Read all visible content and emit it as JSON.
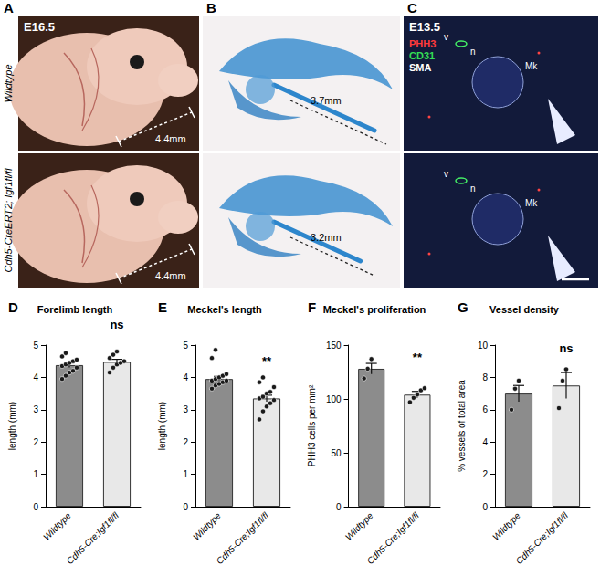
{
  "figure": {
    "A": {
      "label": "A",
      "stage": "E16.5",
      "rows": [
        {
          "genotype": "Wildtype",
          "measurement": "4.4mm"
        },
        {
          "genotype": "Cdh5-CreERT2; Igf1fl/fl",
          "measurement": "4.4mm"
        }
      ]
    },
    "B": {
      "label": "B",
      "rows": [
        {
          "measurement": "3.7mm"
        },
        {
          "measurement": "3.2mm"
        }
      ]
    },
    "C": {
      "label": "C",
      "stage": "E13.5",
      "channels": [
        "PHH3",
        "CD31",
        "SMA"
      ],
      "structures": [
        "v",
        "n",
        "Mk"
      ]
    }
  },
  "chart_data": [
    {
      "panel": "D",
      "type": "bar",
      "title": "Forelimb length",
      "y_label": "length (mm)",
      "categories": [
        "Wildtype",
        "Cdh5-Cre;Igf1fl/fl"
      ],
      "values": [
        4.38,
        4.48
      ],
      "errors": [
        0.07,
        0.08
      ],
      "points": [
        [
          3.95,
          4.05,
          4.15,
          4.2,
          4.3,
          4.35,
          4.4,
          4.45,
          4.5,
          4.55,
          4.65,
          4.75
        ],
        [
          4.15,
          4.3,
          4.4,
          4.45,
          4.5,
          4.6,
          4.7,
          4.8
        ]
      ],
      "colors": [
        "#8c8c8c",
        "#e8e8e8"
      ],
      "annotation": "ns",
      "ylim": [
        0,
        5
      ],
      "yticks": [
        0,
        1,
        2,
        3,
        4,
        5
      ]
    },
    {
      "panel": "E",
      "type": "bar",
      "title": "Meckel's length",
      "y_label": "length (mm)",
      "categories": [
        "Wildtype",
        "Cdh5-Cre;Igf1fl/fl"
      ],
      "values": [
        3.95,
        3.35
      ],
      "errors": [
        0.08,
        0.1
      ],
      "points": [
        [
          3.65,
          3.75,
          3.8,
          3.85,
          3.9,
          3.9,
          3.95,
          4.0,
          4.05,
          4.1,
          4.6,
          4.85
        ],
        [
          2.7,
          2.95,
          3.1,
          3.2,
          3.3,
          3.35,
          3.4,
          3.5,
          3.55,
          3.7,
          3.85,
          4.0
        ]
      ],
      "colors": [
        "#8c8c8c",
        "#e8e8e8"
      ],
      "annotation": "**",
      "ylim": [
        0,
        5
      ],
      "yticks": [
        0,
        1,
        2,
        3,
        4,
        5
      ]
    },
    {
      "panel": "F",
      "type": "bar",
      "title": "Meckel's proliferation",
      "y_label": "PHH3 cells per mm²",
      "categories": [
        "Wildtype",
        "Cdh5-Cre;Igf1fl/fl"
      ],
      "values": [
        128,
        104
      ],
      "errors": [
        5,
        3
      ],
      "points": [
        [
          119,
          128,
          137
        ],
        [
          97,
          101,
          104,
          108,
          110
        ]
      ],
      "colors": [
        "#8c8c8c",
        "#e8e8e8"
      ],
      "annotation": "**",
      "ylim": [
        0,
        150
      ],
      "yticks": [
        0,
        50,
        100,
        150
      ]
    },
    {
      "panel": "G",
      "type": "bar",
      "title": "Vessel density",
      "y_label": "% vessels of total area",
      "categories": [
        "Wildtype",
        "Cdh5-Cre;Igf1fl/fl"
      ],
      "values": [
        7.0,
        7.5
      ],
      "errors": [
        0.5,
        0.8
      ],
      "points": [
        [
          6.0,
          7.3,
          7.8
        ],
        [
          6.1,
          7.8,
          8.5
        ]
      ],
      "colors": [
        "#8c8c8c",
        "#e8e8e8"
      ],
      "annotation": "ns",
      "ylim": [
        0,
        10
      ],
      "yticks": [
        0,
        2,
        4,
        6,
        8,
        10
      ]
    }
  ]
}
